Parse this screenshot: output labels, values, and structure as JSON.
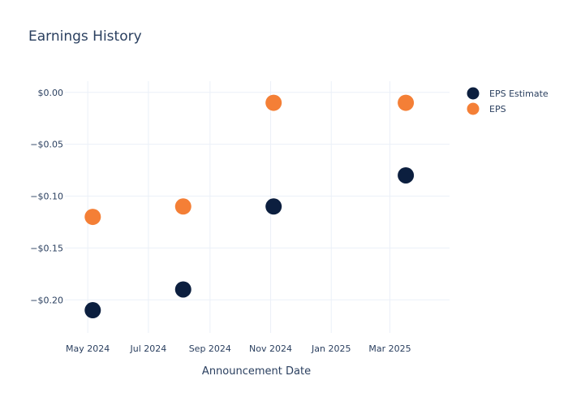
{
  "chart_data": {
    "type": "scatter",
    "title": "Earnings History",
    "xlabel": "Announcement Date",
    "ylabel": "",
    "x_ticks": [
      {
        "date": "2024-05-01",
        "label": "May 2024"
      },
      {
        "date": "2024-07-01",
        "label": "Jul 2024"
      },
      {
        "date": "2024-09-01",
        "label": "Sep 2024"
      },
      {
        "date": "2024-11-01",
        "label": "Nov 2024"
      },
      {
        "date": "2025-01-01",
        "label": "Jan 2025"
      },
      {
        "date": "2025-03-01",
        "label": "Mar 2025"
      }
    ],
    "y_ticks": [
      {
        "value": 0.0,
        "label": "$0.00"
      },
      {
        "value": -0.05,
        "label": "−$0.05"
      },
      {
        "value": -0.1,
        "label": "−$0.10"
      },
      {
        "value": -0.15,
        "label": "−$0.15"
      },
      {
        "value": -0.2,
        "label": "−$0.20"
      }
    ],
    "xlim": [
      "2024-04-08",
      "2025-04-30"
    ],
    "ylim": [
      -0.2319,
      0.0108
    ],
    "grid": true,
    "legend_position": "top-right",
    "series": [
      {
        "name": "EPS Estimate",
        "color": "#0c1f3f",
        "points": [
          {
            "x": "2024-05-06",
            "y": -0.21
          },
          {
            "x": "2024-08-05",
            "y": -0.19
          },
          {
            "x": "2024-11-04",
            "y": -0.11
          },
          {
            "x": "2025-03-17",
            "y": -0.08
          }
        ]
      },
      {
        "name": "EPS",
        "color": "#f47f36",
        "points": [
          {
            "x": "2024-05-06",
            "y": -0.12
          },
          {
            "x": "2024-08-05",
            "y": -0.11
          },
          {
            "x": "2024-11-04",
            "y": -0.01
          },
          {
            "x": "2025-03-17",
            "y": -0.01
          }
        ]
      }
    ]
  }
}
